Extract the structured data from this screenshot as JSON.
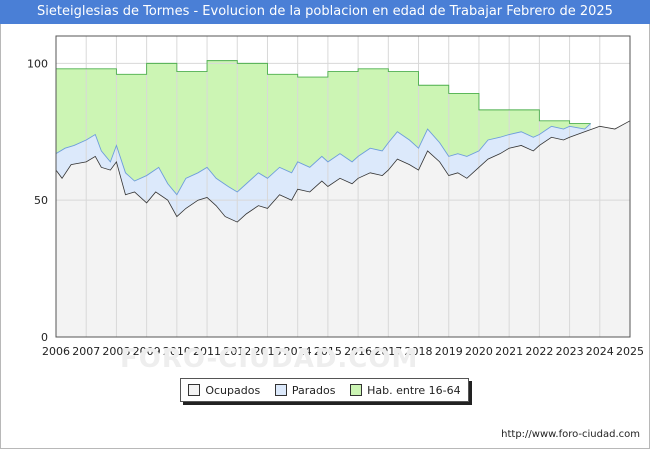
{
  "title": "Sieteiglesias de Tormes - Evolucion de la poblacion en edad de Trabajar Febrero de 2025",
  "watermark": "FORO-CIUDAD.COM",
  "url": "http://www.foro-ciudad.com",
  "legend": [
    {
      "label": "Ocupados",
      "color": "#f3f3f3"
    },
    {
      "label": "Parados",
      "color": "#dce9fb"
    },
    {
      "label": "Hab. entre 16-64",
      "color": "#ccf5b4"
    }
  ],
  "chart_data": {
    "type": "area",
    "title": "Sieteiglesias de Tormes - Evolucion de la poblacion en edad de Trabajar Febrero de 2025",
    "xlabel": "",
    "ylabel": "",
    "xlim": [
      2006,
      2025
    ],
    "ylim": [
      0,
      110
    ],
    "x_ticks": [
      "2006",
      "2007",
      "2008",
      "2009",
      "2010",
      "2011",
      "2012",
      "2013",
      "2014",
      "2015",
      "2016",
      "2017",
      "2018",
      "2019",
      "2020",
      "2021",
      "2022",
      "2023",
      "2024",
      "2025"
    ],
    "y_ticks": [
      0,
      50,
      100
    ],
    "grid": true,
    "series": [
      {
        "name": "Hab. entre 16-64",
        "style": "step",
        "points": [
          [
            2006,
            98
          ],
          [
            2007,
            98
          ],
          [
            2008,
            96
          ],
          [
            2009,
            100
          ],
          [
            2010,
            97
          ],
          [
            2011,
            101
          ],
          [
            2012,
            100
          ],
          [
            2013,
            96
          ],
          [
            2014,
            95
          ],
          [
            2015,
            97
          ],
          [
            2016,
            98
          ],
          [
            2017,
            97
          ],
          [
            2018,
            92
          ],
          [
            2019,
            89
          ],
          [
            2020,
            83
          ],
          [
            2021,
            83
          ],
          [
            2022,
            79
          ],
          [
            2023,
            78
          ],
          [
            2023.7,
            78
          ]
        ]
      },
      {
        "name": "Parados",
        "points": [
          [
            2006,
            67
          ],
          [
            2006.3,
            69
          ],
          [
            2006.6,
            70
          ],
          [
            2007,
            72
          ],
          [
            2007.3,
            74
          ],
          [
            2007.5,
            68
          ],
          [
            2007.8,
            64
          ],
          [
            2008,
            70
          ],
          [
            2008.3,
            60
          ],
          [
            2008.6,
            57
          ],
          [
            2009,
            59
          ],
          [
            2009.4,
            62
          ],
          [
            2009.7,
            56
          ],
          [
            2010,
            52
          ],
          [
            2010.3,
            58
          ],
          [
            2010.7,
            60
          ],
          [
            2011,
            62
          ],
          [
            2011.3,
            58
          ],
          [
            2011.7,
            55
          ],
          [
            2012,
            53
          ],
          [
            2012.3,
            56
          ],
          [
            2012.7,
            60
          ],
          [
            2013,
            58
          ],
          [
            2013.4,
            62
          ],
          [
            2013.8,
            60
          ],
          [
            2014,
            64
          ],
          [
            2014.4,
            62
          ],
          [
            2014.8,
            66
          ],
          [
            2015,
            64
          ],
          [
            2015.4,
            67
          ],
          [
            2015.8,
            64
          ],
          [
            2016,
            66
          ],
          [
            2016.4,
            69
          ],
          [
            2016.8,
            68
          ],
          [
            2017,
            71
          ],
          [
            2017.3,
            75
          ],
          [
            2017.7,
            72
          ],
          [
            2018,
            69
          ],
          [
            2018.3,
            76
          ],
          [
            2018.7,
            71
          ],
          [
            2019,
            66
          ],
          [
            2019.3,
            67
          ],
          [
            2019.6,
            66
          ],
          [
            2020,
            68
          ],
          [
            2020.3,
            72
          ],
          [
            2020.7,
            73
          ],
          [
            2021,
            74
          ],
          [
            2021.4,
            75
          ],
          [
            2021.8,
            73
          ],
          [
            2022,
            74
          ],
          [
            2022.4,
            77
          ],
          [
            2022.8,
            76
          ],
          [
            2023,
            77
          ],
          [
            2023.5,
            76
          ],
          [
            2023.7,
            78
          ]
        ]
      },
      {
        "name": "Ocupados",
        "points": [
          [
            2006,
            61
          ],
          [
            2006.2,
            58
          ],
          [
            2006.5,
            63
          ],
          [
            2007,
            64
          ],
          [
            2007.3,
            66
          ],
          [
            2007.5,
            62
          ],
          [
            2007.8,
            61
          ],
          [
            2008,
            64
          ],
          [
            2008.3,
            52
          ],
          [
            2008.6,
            53
          ],
          [
            2009,
            49
          ],
          [
            2009.3,
            53
          ],
          [
            2009.7,
            50
          ],
          [
            2010,
            44
          ],
          [
            2010.3,
            47
          ],
          [
            2010.7,
            50
          ],
          [
            2011,
            51
          ],
          [
            2011.3,
            48
          ],
          [
            2011.6,
            44
          ],
          [
            2012,
            42
          ],
          [
            2012.3,
            45
          ],
          [
            2012.7,
            48
          ],
          [
            2013,
            47
          ],
          [
            2013.4,
            52
          ],
          [
            2013.8,
            50
          ],
          [
            2014,
            54
          ],
          [
            2014.4,
            53
          ],
          [
            2014.8,
            57
          ],
          [
            2015,
            55
          ],
          [
            2015.4,
            58
          ],
          [
            2015.8,
            56
          ],
          [
            2016,
            58
          ],
          [
            2016.4,
            60
          ],
          [
            2016.8,
            59
          ],
          [
            2017,
            61
          ],
          [
            2017.3,
            65
          ],
          [
            2017.7,
            63
          ],
          [
            2018,
            61
          ],
          [
            2018.3,
            68
          ],
          [
            2018.7,
            64
          ],
          [
            2019,
            59
          ],
          [
            2019.3,
            60
          ],
          [
            2019.6,
            58
          ],
          [
            2020,
            62
          ],
          [
            2020.3,
            65
          ],
          [
            2020.7,
            67
          ],
          [
            2021,
            69
          ],
          [
            2021.4,
            70
          ],
          [
            2021.8,
            68
          ],
          [
            2022,
            70
          ],
          [
            2022.4,
            73
          ],
          [
            2022.8,
            72
          ],
          [
            2023,
            73
          ],
          [
            2023.5,
            75
          ],
          [
            2024,
            77
          ],
          [
            2024.5,
            76
          ],
          [
            2025,
            79
          ]
        ]
      }
    ]
  }
}
